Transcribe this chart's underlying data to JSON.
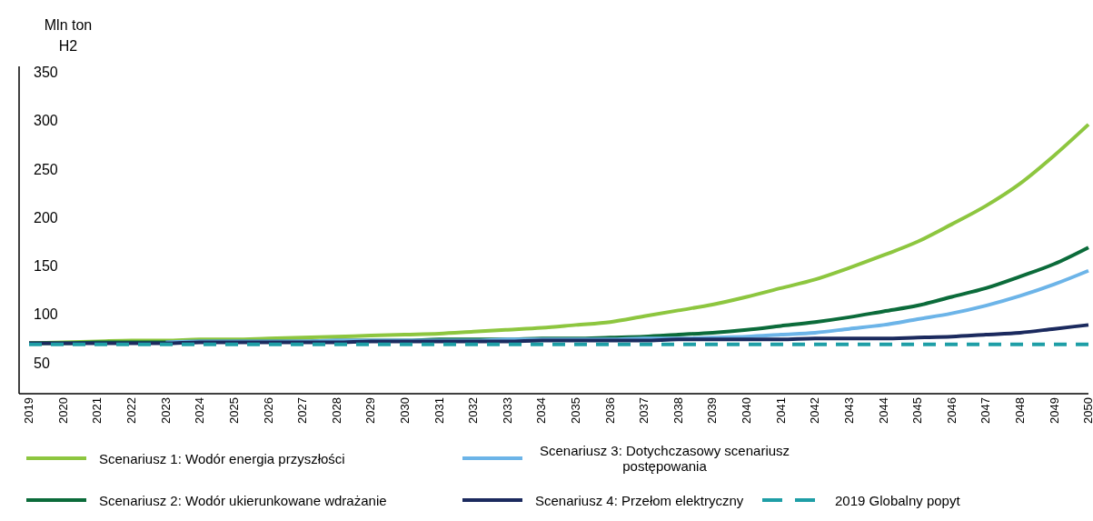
{
  "chart_data": {
    "type": "line",
    "ylabel": "Mln ton H2",
    "categories": [
      "2019",
      "2020",
      "2021",
      "2022",
      "2023",
      "2024",
      "2025",
      "2026",
      "2027",
      "2028",
      "2029",
      "2030",
      "2031",
      "2032",
      "2033",
      "2034",
      "2035",
      "2036",
      "2037",
      "2038",
      "2039",
      "2040",
      "2041",
      "2042",
      "2043",
      "2044",
      "2045",
      "2046",
      "2047",
      "2048",
      "2049",
      "2050"
    ],
    "series": [
      {
        "name": "Scenariusz 1: Wodór energia przyszłości",
        "color": "#8dc63f",
        "values": [
          70,
          71,
          72,
          73,
          73,
          74,
          74,
          75,
          76,
          77,
          78,
          79,
          80,
          82,
          84,
          86,
          89,
          92,
          98,
          104,
          110,
          118,
          127,
          136,
          148,
          161,
          175,
          193,
          212,
          235,
          264,
          296
        ]
      },
      {
        "name": "Scenariusz 2: Wodór ukierunkowane wdrażanie",
        "color": "#0b6b3a",
        "values": [
          70,
          70,
          71,
          71,
          71,
          72,
          72,
          72,
          72,
          73,
          73,
          73,
          74,
          74,
          74,
          75,
          75,
          76,
          77,
          79,
          81,
          84,
          88,
          92,
          97,
          103,
          109,
          118,
          127,
          139,
          152,
          169
        ]
      },
      {
        "name": "Scenariusz 3: Dotychczasowy scenariusz postępowania",
        "color": "#6cb4e8",
        "values": [
          null,
          null,
          null,
          null,
          71,
          72,
          72,
          72,
          72,
          73,
          73,
          73,
          73,
          73,
          74,
          74,
          74,
          74,
          75,
          75,
          76,
          77,
          79,
          81,
          85,
          89,
          95,
          101,
          109,
          119,
          131,
          145
        ]
      },
      {
        "name": "Scenariusz 4: Przełom elektryczny",
        "color": "#1b2a5e",
        "values": [
          70,
          70,
          70,
          70,
          70,
          71,
          71,
          71,
          71,
          71,
          72,
          72,
          72,
          72,
          72,
          73,
          73,
          73,
          73,
          74,
          74,
          74,
          74,
          75,
          75,
          75,
          76,
          77,
          79,
          81,
          85,
          89
        ]
      },
      {
        "name": "2019 Globalny popyt",
        "color": "#1e9ea6",
        "line_style": "dashed",
        "values": [
          69,
          69,
          69,
          69,
          69,
          69,
          69,
          69,
          69,
          69,
          69,
          69,
          69,
          69,
          69,
          69,
          69,
          69,
          69,
          69,
          69,
          69,
          69,
          69,
          69,
          69,
          69,
          69,
          69,
          69,
          69,
          69
        ]
      }
    ],
    "ylim": [
      18,
      356
    ],
    "yticks": [
      50,
      100,
      150,
      200,
      250,
      300,
      350
    ],
    "grid": false,
    "legend": "bottom",
    "marker": "none",
    "line_style": "solid"
  }
}
